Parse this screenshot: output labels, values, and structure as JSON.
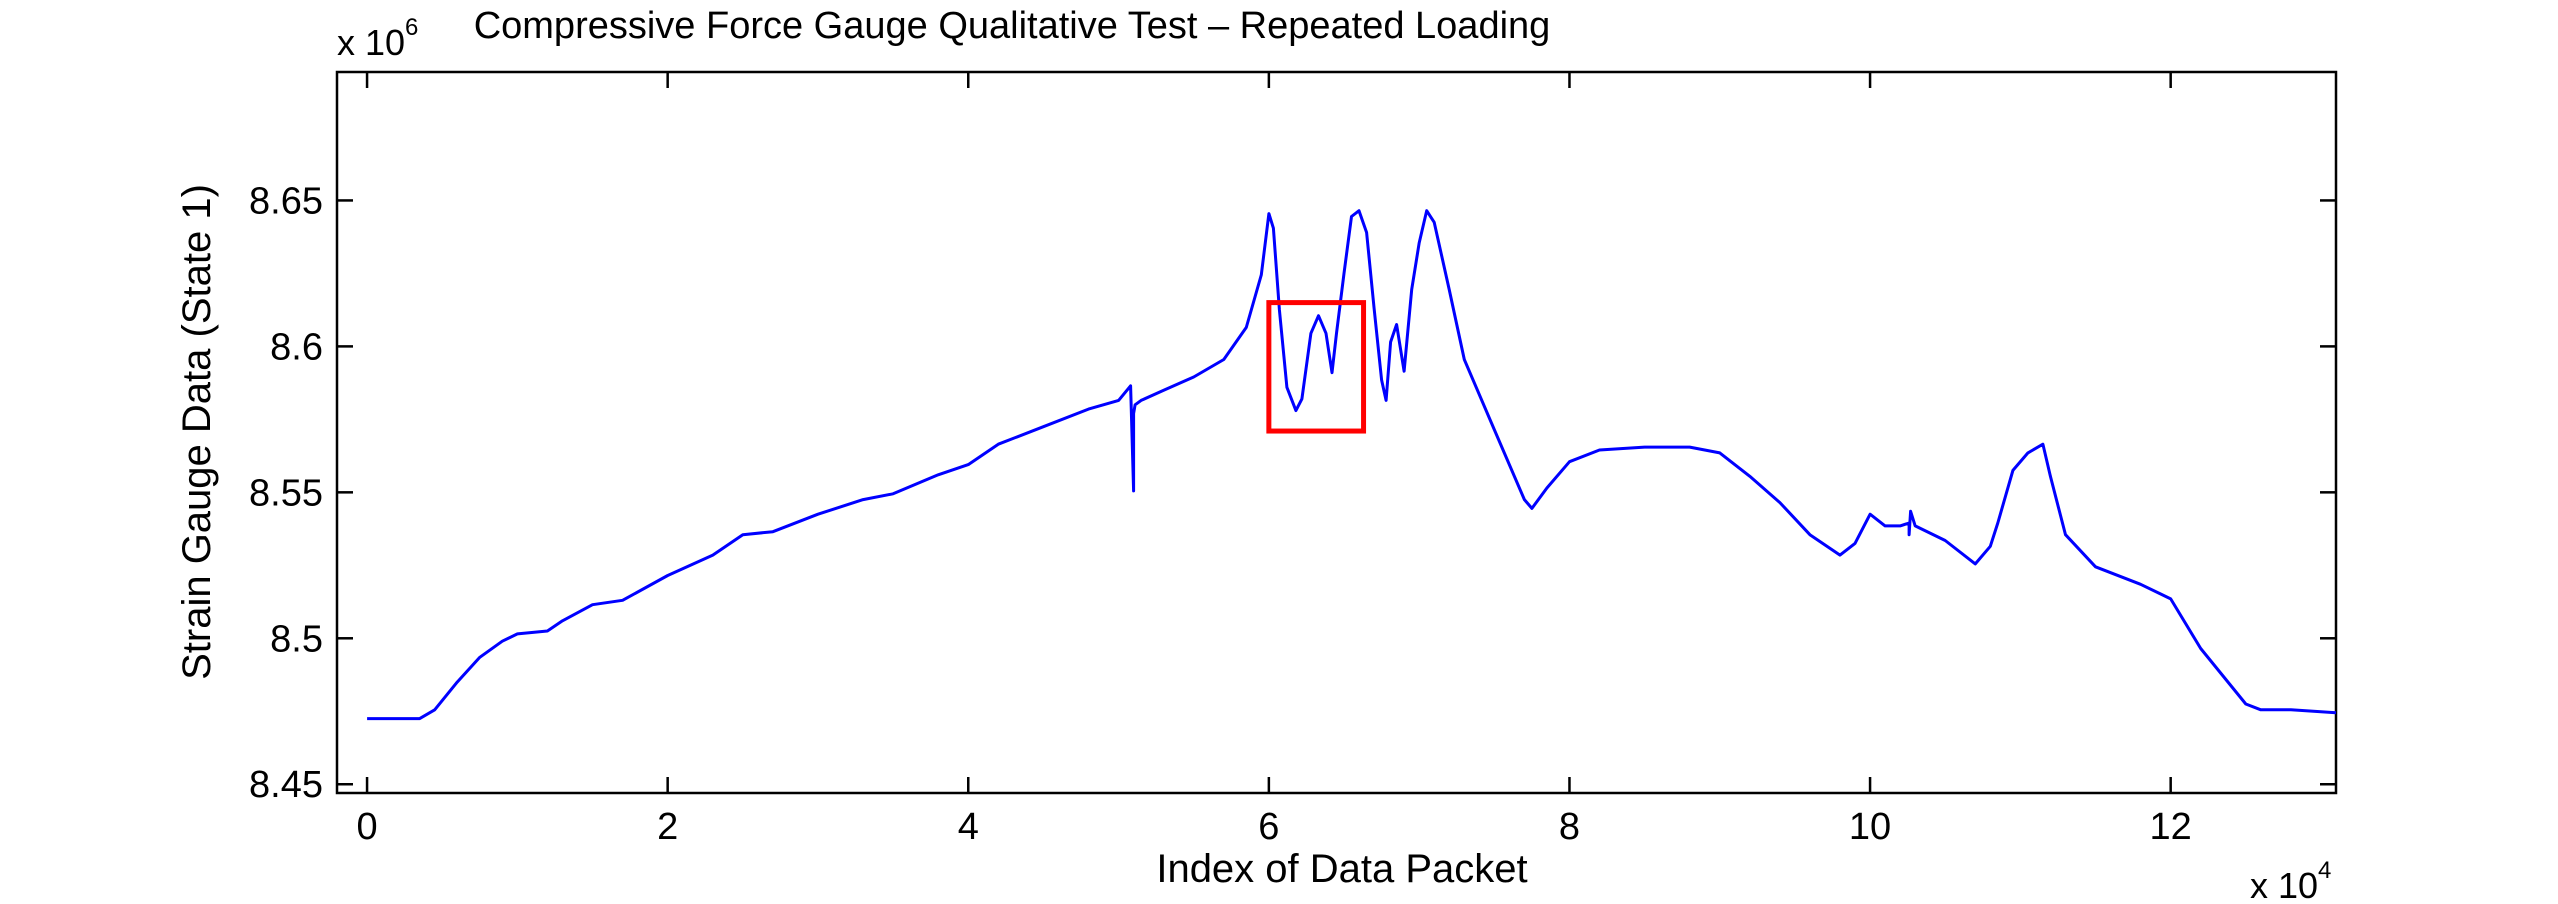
{
  "chart_data": {
    "type": "line",
    "title": "Compressive Force Gauge Qualitative Test – Repeated Loading",
    "xlabel": "Index of Data Packet",
    "ylabel": "Strain Gauge Data (State 1)",
    "x_multiplier": {
      "base": "x 10",
      "exponent": "4"
    },
    "y_multiplier": {
      "base": "x 10",
      "exponent": "6"
    },
    "xlim": [
      -0.2,
      13.1
    ],
    "ylim": [
      8.447,
      8.694
    ],
    "x_ticks": [
      0,
      2,
      4,
      6,
      8,
      10,
      12
    ],
    "x_tick_labels": [
      "0",
      "2",
      "4",
      "6",
      "8",
      "10",
      "12"
    ],
    "y_ticks": [
      8.45,
      8.5,
      8.55,
      8.6,
      8.65
    ],
    "y_tick_labels": [
      "8.45",
      "8.5",
      "8.55",
      "8.6",
      "8.65"
    ],
    "grid": false,
    "series_color": "#0000ff",
    "highlight_box": {
      "x": [
        6.0,
        6.63
      ],
      "y": [
        8.571,
        8.615
      ],
      "color": "#ff0000"
    },
    "series": [
      {
        "x": [
          0.0,
          0.35,
          0.45,
          0.6,
          0.75,
          0.9,
          1.0,
          1.2,
          1.3,
          1.5,
          1.7,
          2.0,
          2.3,
          2.5,
          2.7,
          3.0,
          3.3,
          3.5,
          3.8,
          4.0,
          4.2,
          4.5,
          4.8,
          5.0,
          5.08,
          5.1,
          5.1,
          5.11,
          5.15,
          5.3,
          5.5,
          5.7,
          5.85,
          5.95,
          6.0,
          6.03,
          6.07,
          6.12,
          6.18,
          6.22,
          6.28,
          6.33,
          6.38,
          6.42,
          6.45,
          6.5,
          6.55,
          6.6,
          6.65,
          6.7,
          6.75,
          6.78,
          6.81,
          6.85,
          6.9,
          6.95,
          7.0,
          7.05,
          7.1,
          7.2,
          7.3,
          7.5,
          7.7,
          7.75,
          7.85,
          8.0,
          8.2,
          8.5,
          8.8,
          9.0,
          9.2,
          9.4,
          9.6,
          9.8,
          9.9,
          10.0,
          10.1,
          10.2,
          10.26,
          10.26,
          10.27,
          10.3,
          10.5,
          10.7,
          10.8,
          10.85,
          10.95,
          11.05,
          11.15,
          11.2,
          11.3,
          11.5,
          11.8,
          12.0,
          12.2,
          12.5,
          12.6,
          12.8,
          13.1
        ],
        "y": [
          8.4725,
          8.4725,
          8.4755,
          8.485,
          8.4935,
          8.499,
          8.5015,
          8.5025,
          8.506,
          8.5115,
          8.513,
          8.5215,
          8.5285,
          8.5355,
          8.5365,
          8.5425,
          8.5475,
          8.5495,
          8.556,
          8.5595,
          8.5665,
          8.5725,
          8.5785,
          8.5815,
          8.5865,
          8.5505,
          8.577,
          8.58,
          8.5815,
          8.585,
          8.5895,
          8.5955,
          8.6065,
          8.6245,
          8.6455,
          8.6405,
          8.6125,
          8.586,
          8.578,
          8.582,
          8.6045,
          8.6105,
          8.6045,
          8.591,
          8.6045,
          8.625,
          8.6445,
          8.6465,
          8.639,
          8.613,
          8.5885,
          8.5815,
          8.6015,
          8.6075,
          8.5915,
          8.6195,
          8.6355,
          8.6465,
          8.6425,
          8.6195,
          8.5955,
          8.5715,
          8.5475,
          8.5445,
          8.5515,
          8.5605,
          8.5645,
          8.5655,
          8.5655,
          8.5635,
          8.5555,
          8.5465,
          8.5355,
          8.5285,
          8.5325,
          8.5425,
          8.5385,
          8.5385,
          8.5395,
          8.5355,
          8.5435,
          8.5385,
          8.5335,
          8.5255,
          8.5315,
          8.5395,
          8.5575,
          8.5635,
          8.5665,
          8.5555,
          8.5355,
          8.5245,
          8.5185,
          8.5135,
          8.4965,
          8.4775,
          8.4755,
          8.4755,
          8.4745
        ]
      }
    ]
  }
}
